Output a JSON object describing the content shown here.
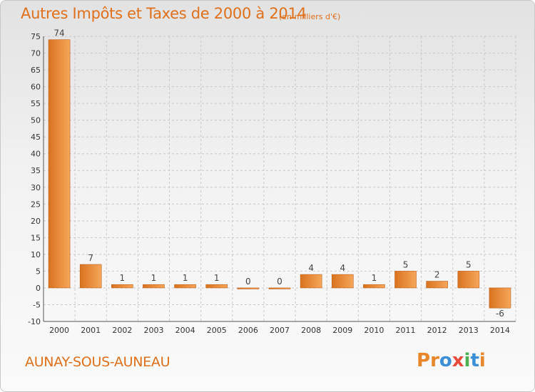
{
  "header": {
    "title": "Autres Impôts et Taxes de 2000 à 2014",
    "subtitle": "(en milliers d'€)"
  },
  "footer": {
    "commune": "AUNAY-SOUS-AUNEAU",
    "brand_letters": [
      "P",
      "r",
      "o",
      "x",
      "i",
      "t",
      "i"
    ],
    "brand_colors": [
      "#e8862a",
      "#e8862a",
      "#3a8fd6",
      "#e84a3c",
      "#4caf50",
      "#3a8fd6",
      "#e8862a"
    ]
  },
  "colors": {
    "accent": "#e06f1a",
    "bar_light": "#f6a65a",
    "bar_dark": "#d9731f",
    "grid": "#c8c8c8"
  },
  "chart_data": {
    "type": "bar",
    "title": "Autres Impôts et Taxes de 2000 à 2014",
    "subtitle": "(en milliers d'€)",
    "categories": [
      "2000",
      "2001",
      "2002",
      "2003",
      "2004",
      "2005",
      "2006",
      "2007",
      "2008",
      "2009",
      "2010",
      "2011",
      "2012",
      "2013",
      "2014"
    ],
    "values": [
      74,
      7,
      1,
      1,
      1,
      1,
      0,
      0,
      4,
      4,
      1,
      5,
      2,
      5,
      -6
    ],
    "data_labels": [
      "74",
      "7",
      "1",
      "1",
      "1",
      "1",
      "0",
      "0",
      "4",
      "4",
      "1",
      "5",
      "2",
      "5",
      "-6"
    ],
    "ylim": [
      -10,
      75
    ],
    "yticks": [
      -10,
      -5,
      0,
      5,
      10,
      15,
      20,
      25,
      30,
      35,
      40,
      45,
      50,
      55,
      60,
      65,
      70,
      75
    ],
    "grid": true,
    "legend": "none"
  }
}
